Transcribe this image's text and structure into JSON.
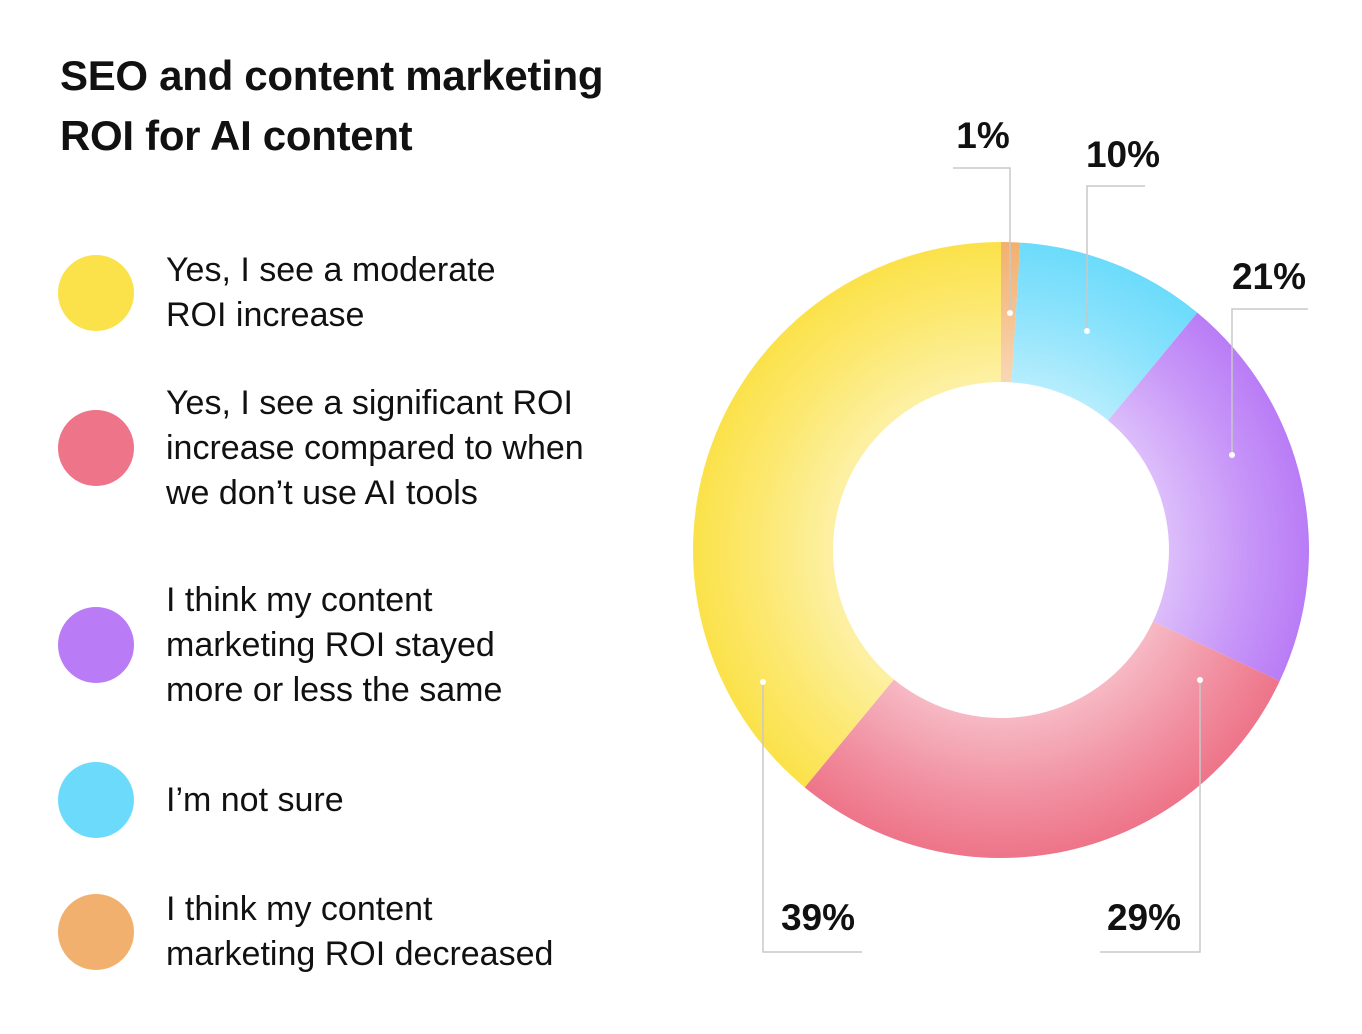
{
  "chart_data": {
    "type": "pie",
    "variant": "donut",
    "title": "SEO and content marketing ROI for AI content",
    "legend_placement": "left",
    "slices": [
      {
        "label": "I think my content marketing ROI decreased",
        "value": 1,
        "display": "1%",
        "color": "#F2B06E"
      },
      {
        "label": "I'm not sure",
        "value": 10,
        "display": "10%",
        "color": "#6CDBFB"
      },
      {
        "label": "I think my content marketing ROI stayed more or less the same",
        "value": 21,
        "display": "21%",
        "color": "#B97CF6"
      },
      {
        "label": "Yes, I see a significant ROI increase compared to when we don't use AI tools",
        "value": 29,
        "display": "29%",
        "color": "#EE7489"
      },
      {
        "label": "Yes, I see a moderate ROI increase",
        "value": 39,
        "display": "39%",
        "color": "#FBE24A"
      }
    ]
  },
  "legend": [
    {
      "lines": [
        "Yes, I see a moderate",
        "ROI increase"
      ],
      "color": "#FBE24A"
    },
    {
      "lines": [
        "Yes, I see a significant ROI",
        "increase compared to when",
        "we don’t use AI tools"
      ],
      "color": "#EE7489"
    },
    {
      "lines": [
        "I think my content",
        "marketing ROI stayed",
        "more or less the same"
      ],
      "color": "#B97CF6"
    },
    {
      "lines": [
        "I’m not sure"
      ],
      "color": "#6CDBFB"
    },
    {
      "lines": [
        "I think my content",
        "marketing ROI decreased"
      ],
      "color": "#F2B06E"
    }
  ],
  "title_lines": [
    "SEO and content marketing",
    "ROI for AI content"
  ]
}
